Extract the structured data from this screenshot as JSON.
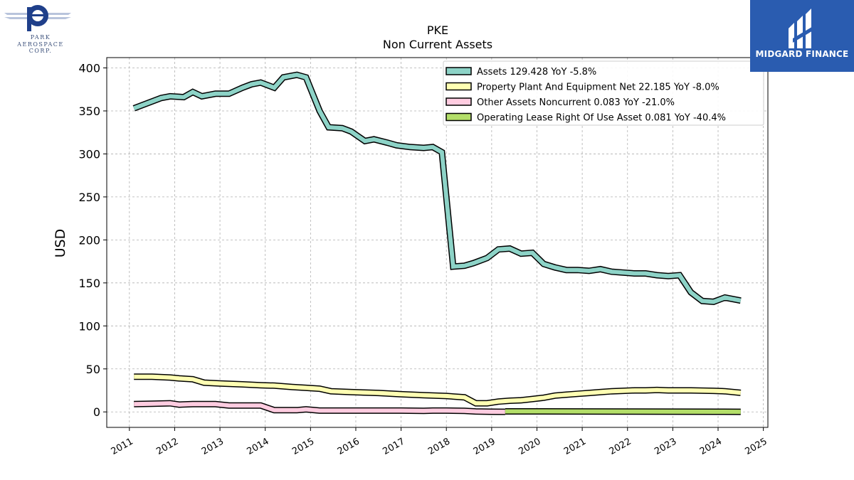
{
  "logos": {
    "park": {
      "line1": "PARK",
      "line2": "AEROSPACE",
      "line3": "CORP."
    },
    "midgard": {
      "text": "MIDGARD FINANCE"
    }
  },
  "colors": {
    "midgard_bg": "#2a5cb0",
    "park_blue": "#1f3f8a",
    "assets": "#8dd3c7",
    "ppe": "#ffffb3",
    "other": "#ffcce0",
    "lease": "#b3de69",
    "grid": "#b0b0b0"
  },
  "chart_data": {
    "type": "line",
    "title": "PKE",
    "subtitle": "Non Current  Assets",
    "ylabel": "USD",
    "xlabel": "",
    "ylim": [
      -18,
      412
    ],
    "xlim": [
      2010.5,
      2025.1
    ],
    "yticks": [
      0,
      50,
      100,
      150,
      200,
      250,
      300,
      350,
      400
    ],
    "xticks": [
      "2011",
      "2012",
      "2013",
      "2014",
      "2015",
      "2016",
      "2017",
      "2018",
      "2019",
      "2020",
      "2021",
      "2022",
      "2023",
      "2024",
      "2025"
    ],
    "grid": true,
    "legend_position": "top-right",
    "series": [
      {
        "name": "Assets  129.428 YoY -5.8%",
        "color": "#8dd3c7",
        "points": [
          [
            2011.1,
            353
          ],
          [
            2011.4,
            359
          ],
          [
            2011.7,
            365
          ],
          [
            2011.9,
            367
          ],
          [
            2012.2,
            366
          ],
          [
            2012.4,
            372
          ],
          [
            2012.6,
            367
          ],
          [
            2012.9,
            370
          ],
          [
            2013.2,
            370
          ],
          [
            2013.5,
            377
          ],
          [
            2013.7,
            381
          ],
          [
            2013.9,
            383
          ],
          [
            2014.2,
            377
          ],
          [
            2014.4,
            389
          ],
          [
            2014.7,
            392
          ],
          [
            2014.9,
            389
          ],
          [
            2015.2,
            350
          ],
          [
            2015.4,
            331
          ],
          [
            2015.7,
            330
          ],
          [
            2015.9,
            326
          ],
          [
            2016.2,
            315
          ],
          [
            2016.4,
            317
          ],
          [
            2016.7,
            313
          ],
          [
            2016.9,
            310
          ],
          [
            2017.2,
            308
          ],
          [
            2017.5,
            307
          ],
          [
            2017.7,
            308
          ],
          [
            2017.9,
            302
          ],
          [
            2018.15,
            169
          ],
          [
            2018.4,
            170
          ],
          [
            2018.6,
            173
          ],
          [
            2018.9,
            179
          ],
          [
            2019.15,
            189
          ],
          [
            2019.4,
            190
          ],
          [
            2019.65,
            184
          ],
          [
            2019.9,
            185
          ],
          [
            2020.15,
            172
          ],
          [
            2020.4,
            168
          ],
          [
            2020.65,
            165
          ],
          [
            2020.9,
            165
          ],
          [
            2021.15,
            164
          ],
          [
            2021.4,
            166
          ],
          [
            2021.65,
            163
          ],
          [
            2021.9,
            162
          ],
          [
            2022.15,
            161
          ],
          [
            2022.4,
            161
          ],
          [
            2022.65,
            159
          ],
          [
            2022.9,
            158
          ],
          [
            2023.15,
            159
          ],
          [
            2023.4,
            139
          ],
          [
            2023.65,
            129
          ],
          [
            2023.9,
            128
          ],
          [
            2024.15,
            133
          ],
          [
            2024.5,
            129.4
          ]
        ]
      },
      {
        "name": "Property Plant And Equipment Net  22.185 YoY -8.0%",
        "color": "#ffffb3",
        "points": [
          [
            2011.1,
            41
          ],
          [
            2011.5,
            41
          ],
          [
            2011.9,
            40
          ],
          [
            2012.1,
            39
          ],
          [
            2012.4,
            38
          ],
          [
            2012.65,
            34
          ],
          [
            2013.0,
            33
          ],
          [
            2013.5,
            32
          ],
          [
            2013.9,
            31
          ],
          [
            2014.2,
            30.5
          ],
          [
            2014.6,
            29
          ],
          [
            2014.9,
            28
          ],
          [
            2015.2,
            27
          ],
          [
            2015.45,
            24
          ],
          [
            2015.9,
            23
          ],
          [
            2016.5,
            22
          ],
          [
            2017.0,
            20.5
          ],
          [
            2017.5,
            19.5
          ],
          [
            2018.0,
            18.5
          ],
          [
            2018.4,
            17
          ],
          [
            2018.65,
            10
          ],
          [
            2018.9,
            10
          ],
          [
            2019.15,
            12
          ],
          [
            2019.4,
            13
          ],
          [
            2019.65,
            13.5
          ],
          [
            2019.9,
            15
          ],
          [
            2020.15,
            16.5
          ],
          [
            2020.4,
            19
          ],
          [
            2020.65,
            20
          ],
          [
            2020.9,
            21
          ],
          [
            2021.15,
            22
          ],
          [
            2021.4,
            23
          ],
          [
            2021.65,
            24
          ],
          [
            2021.9,
            24.5
          ],
          [
            2022.15,
            25
          ],
          [
            2022.4,
            25
          ],
          [
            2022.65,
            25.5
          ],
          [
            2022.9,
            25
          ],
          [
            2023.4,
            25
          ],
          [
            2023.9,
            24.5
          ],
          [
            2024.15,
            24
          ],
          [
            2024.5,
            22.2
          ]
        ]
      },
      {
        "name": "Other Assets Noncurrent  0.083 YoY -21.0%",
        "color": "#ffcce0",
        "points": [
          [
            2011.1,
            9
          ],
          [
            2011.5,
            9.5
          ],
          [
            2011.9,
            10
          ],
          [
            2012.1,
            8.5
          ],
          [
            2012.4,
            9
          ],
          [
            2012.9,
            9
          ],
          [
            2013.2,
            7.5
          ],
          [
            2013.9,
            7.5
          ],
          [
            2014.2,
            2
          ],
          [
            2014.7,
            2
          ],
          [
            2014.9,
            3
          ],
          [
            2015.2,
            1.5
          ],
          [
            2015.6,
            1.5
          ],
          [
            2016.0,
            1.5
          ],
          [
            2017.0,
            1.5
          ],
          [
            2017.5,
            1.2
          ],
          [
            2017.7,
            1.5
          ],
          [
            2018.0,
            1.5
          ],
          [
            2018.4,
            1.2
          ],
          [
            2018.65,
            0.5
          ],
          [
            2019.0,
            0.2
          ],
          [
            2019.3,
            0.1
          ]
        ]
      },
      {
        "name": "Operating Lease Right Of Use Asset  0.081 YoY -40.4%",
        "color": "#b3de69",
        "points": [
          [
            2019.3,
            0.6
          ],
          [
            2020.0,
            0.6
          ],
          [
            2021.0,
            0.5
          ],
          [
            2022.0,
            0.4
          ],
          [
            2023.0,
            0.3
          ],
          [
            2024.0,
            0.2
          ],
          [
            2024.5,
            0.1
          ]
        ]
      }
    ]
  }
}
